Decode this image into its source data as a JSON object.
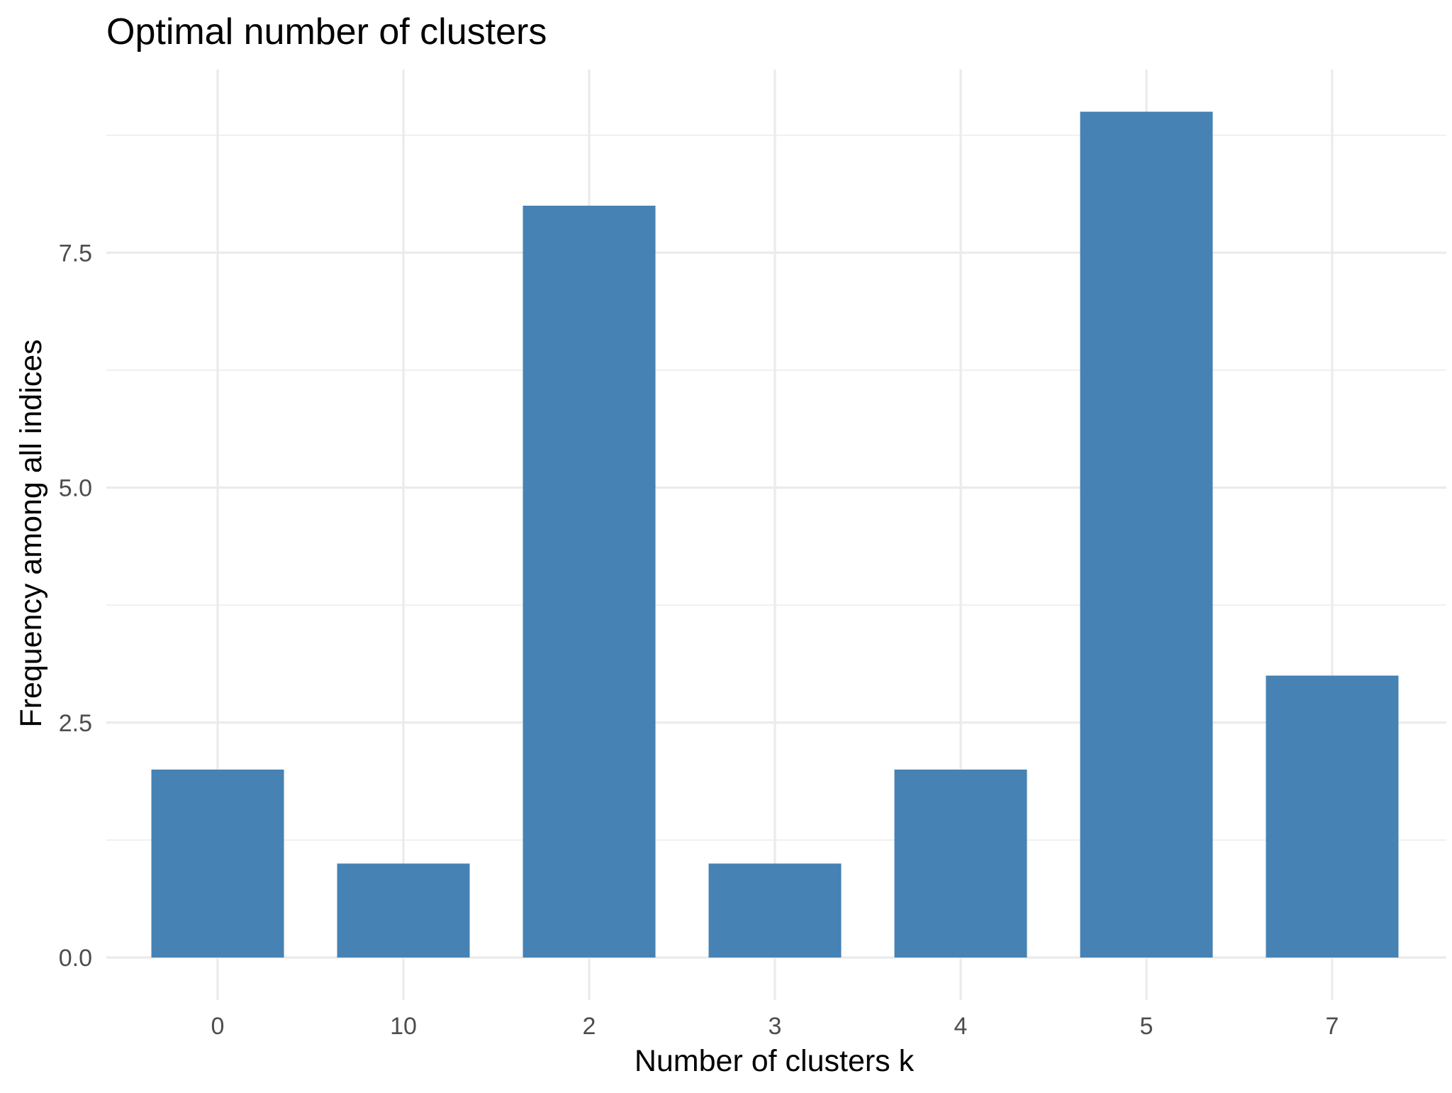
{
  "chart_data": {
    "type": "bar",
    "title": "Optimal number of clusters",
    "xlabel": "Number of clusters k",
    "ylabel": "Frequency among all indices",
    "categories": [
      "0",
      "10",
      "2",
      "3",
      "4",
      "5",
      "7"
    ],
    "values": [
      2,
      1,
      8,
      1,
      2,
      9,
      3
    ],
    "ylim": [
      0,
      9
    ],
    "yticks": [
      "0.0",
      "2.5",
      "5.0",
      "7.5"
    ],
    "grid": true,
    "legend": "none",
    "bar_color": "#4682b4"
  }
}
